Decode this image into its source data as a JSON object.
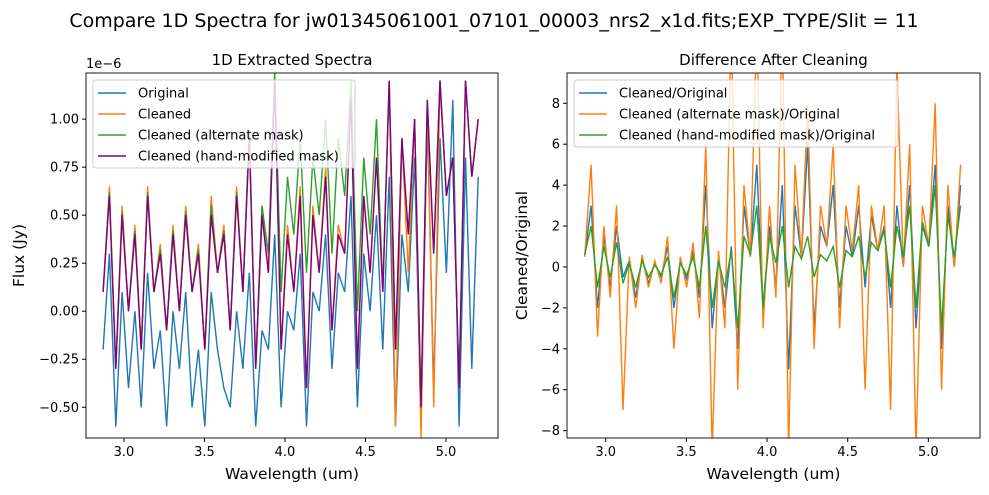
{
  "figure_title": "Compare 1D Spectra for jw01345061001_07101_00003_nrs2_x1d.fits;EXP_TYPE/Slit = 11",
  "chart_data": [
    {
      "type": "line",
      "title": "1D Extracted Spectra",
      "xlabel": "Wavelength (um)",
      "ylabel": "Flux (Jy)",
      "y_scale_label": "1e−6",
      "xlim": [
        2.764,
        5.323
      ],
      "ylim": [
        -0.66,
        1.24
      ],
      "xticks": [
        3.0,
        3.5,
        4.0,
        4.5,
        5.0
      ],
      "xtick_labels": [
        "3.0",
        "3.5",
        "4.0",
        "4.5",
        "5.0"
      ],
      "yticks": [
        -0.5,
        -0.25,
        0.0,
        0.25,
        0.5,
        0.75,
        1.0
      ],
      "ytick_labels": [
        "−0.50",
        "−0.25",
        "0.00",
        "0.25",
        "0.50",
        "0.75",
        "1.00"
      ],
      "legend_position": "upper-left",
      "x": {
        "start": 2.87,
        "stop": 5.2,
        "count": 60
      },
      "series": [
        {
          "name": "Original",
          "color": "#1f77b4",
          "values": [
            -0.2,
            0.3,
            -0.6,
            0.1,
            -0.4,
            0.0,
            -0.5,
            0.2,
            -0.3,
            -0.1,
            -0.6,
            0.0,
            -0.3,
            0.1,
            -0.5,
            -0.2,
            -0.6,
            0.1,
            -0.2,
            -0.4,
            -0.5,
            0.0,
            -0.3,
            0.2,
            -0.6,
            -0.1,
            -0.2,
            0.4,
            -0.5,
            0.0,
            -0.1,
            0.3,
            -0.6,
            0.1,
            0.0,
            0.4,
            -0.3,
            0.2,
            0.1,
            0.6,
            -0.5,
            0.3,
            0.0,
            0.5,
            -0.2,
            0.7,
            -0.6,
            0.4,
            0.1,
            0.8,
            -0.6,
            1.0,
            -0.4,
            0.9,
            0.2,
            1.1,
            -0.6,
            0.8,
            -0.3,
            0.7
          ]
        },
        {
          "name": "Cleaned",
          "color": "#ff7f0e",
          "values": [
            0.1,
            0.65,
            -0.3,
            0.55,
            0.0,
            0.45,
            -0.2,
            0.65,
            0.1,
            0.35,
            -0.1,
            0.45,
            0.0,
            0.55,
            0.1,
            0.35,
            -0.2,
            0.6,
            0.2,
            0.45,
            -0.1,
            0.65,
            0.1,
            0.95,
            -0.3,
            0.55,
            0.2,
            1.2,
            -0.2,
            0.45,
            0.1,
            0.65,
            -0.4,
            0.55,
            0.2,
            0.75,
            -0.1,
            0.45,
            0.3,
            1.1,
            -0.3,
            0.6,
            0.2,
            0.8,
            0.1,
            1.2,
            -0.6,
            0.9,
            0.2,
            1.0,
            -0.66,
            1.1,
            -0.5,
            1.2,
            0.6,
            0.8,
            -0.4,
            1.2,
            0.7,
            1.0
          ]
        },
        {
          "name": "Cleaned (alternate mask)",
          "color": "#2ca02c",
          "values": [
            0.1,
            0.62,
            -0.3,
            0.52,
            0.0,
            0.42,
            -0.2,
            0.62,
            0.1,
            0.32,
            -0.1,
            0.42,
            0.0,
            0.52,
            0.1,
            0.32,
            -0.2,
            0.55,
            0.2,
            0.42,
            -0.1,
            0.62,
            0.1,
            0.92,
            -0.3,
            0.55,
            0.3,
            1.24,
            0.1,
            0.7,
            0.4,
            0.9,
            0.2,
            0.8,
            0.5,
            1.0,
            0.3,
            0.9,
            0.6,
            1.2,
            0.0,
            0.8,
            0.4,
            1.0,
            0.1,
            1.2,
            -0.2,
            0.9,
            0.4,
            1.0,
            -0.5,
            1.1,
            0.3,
            1.2,
            0.6,
            0.8,
            -0.4,
            1.2,
            0.7,
            1.0
          ]
        },
        {
          "name": "Cleaned (hand-modified mask)",
          "color": "#800080",
          "values": [
            0.1,
            0.6,
            -0.3,
            0.5,
            0.0,
            0.4,
            -0.2,
            0.6,
            0.1,
            0.3,
            -0.1,
            0.4,
            0.0,
            0.5,
            0.1,
            0.3,
            -0.2,
            0.5,
            0.2,
            0.4,
            -0.1,
            0.6,
            0.1,
            0.9,
            -0.3,
            0.5,
            0.2,
            1.2,
            -0.2,
            0.4,
            0.1,
            0.6,
            -0.4,
            0.5,
            0.2,
            0.7,
            -0.1,
            0.4,
            0.3,
            1.1,
            -0.3,
            0.6,
            0.2,
            0.8,
            0.1,
            1.2,
            -0.2,
            0.9,
            0.4,
            1.0,
            -0.5,
            1.1,
            0.3,
            1.2,
            0.6,
            0.8,
            -0.4,
            1.2,
            0.7,
            1.0
          ]
        }
      ]
    },
    {
      "type": "line",
      "title": "Difference After Cleaning",
      "xlabel": "Wavelength (um)",
      "ylabel": "Cleaned/Original",
      "xlim": [
        2.76,
        5.32
      ],
      "ylim": [
        -8.36,
        9.48
      ],
      "xticks": [
        3.0,
        3.5,
        4.0,
        4.5,
        5.0
      ],
      "xtick_labels": [
        "3.0",
        "3.5",
        "4.0",
        "4.5",
        "5.0"
      ],
      "yticks": [
        -8,
        -6,
        -4,
        -2,
        0,
        2,
        4,
        6,
        8
      ],
      "ytick_labels": [
        "−8",
        "−6",
        "−4",
        "−2",
        "0",
        "2",
        "4",
        "6",
        "8"
      ],
      "legend_position": "upper-left",
      "x": {
        "start": 2.87,
        "stop": 5.2,
        "count": 60
      },
      "series": [
        {
          "name": "Cleaned/Original",
          "color": "#1f77b4",
          "values": [
            0.5,
            3,
            -2,
            1.5,
            -1,
            2,
            -0.5,
            0.3,
            -1.5,
            0.4,
            -0.8,
            0.2,
            -0.5,
            1,
            -2,
            0.3,
            -0.6,
            0.8,
            -1.5,
            4,
            -3,
            0.5,
            -2,
            1,
            -4,
            3,
            0.5,
            5,
            -2,
            2,
            -1,
            4,
            -5,
            3,
            0.5,
            6,
            -3,
            2,
            1,
            4,
            -2,
            2,
            0.5,
            3,
            -1,
            2.5,
            0.8,
            2,
            -2,
            3,
            0,
            4,
            -3,
            2,
            1,
            5,
            -4,
            3,
            0,
            4
          ]
        },
        {
          "name": "Cleaned (alternate mask)/Original",
          "color": "#ff7f0e",
          "values": [
            0.5,
            5,
            -3.4,
            2,
            -1.5,
            3,
            -7,
            0.5,
            -2,
            0.6,
            -1,
            0.3,
            -0.8,
            1.5,
            -4,
            0.5,
            -1,
            1.2,
            -2.5,
            6,
            -9,
            0.8,
            -3,
            12,
            -6,
            4,
            0.5,
            12,
            -3,
            3,
            -1.5,
            12,
            -9,
            5,
            0.5,
            8,
            -4,
            3,
            1,
            6,
            -3,
            3,
            0.8,
            4,
            -6,
            3,
            0.8,
            3,
            -7,
            10,
            0,
            6,
            -9,
            3,
            1,
            8,
            -6,
            4,
            0,
            5
          ]
        },
        {
          "name": "Cleaned (hand-modified mask)/Original",
          "color": "#2ca02c",
          "values": [
            0.6,
            2,
            -1,
            1,
            -0.5,
            1.2,
            -0.8,
            0.2,
            -1,
            0.3,
            -0.5,
            0.1,
            -0.4,
            0.5,
            -1.5,
            0.2,
            -0.4,
            0.5,
            -1,
            2,
            -2,
            0.3,
            -1,
            0.8,
            -3,
            1.5,
            0.6,
            3,
            -2,
            1.5,
            0.2,
            2,
            -1,
            1,
            0.4,
            1.5,
            -0.5,
            0.6,
            0.3,
            1,
            -1,
            0.8,
            0.5,
            1.5,
            -0.5,
            1.2,
            0.8,
            1.8,
            -1,
            2,
            0.5,
            3,
            -2,
            2.2,
            1,
            4,
            -3,
            2.5,
            0.5,
            3
          ]
        }
      ]
    }
  ]
}
